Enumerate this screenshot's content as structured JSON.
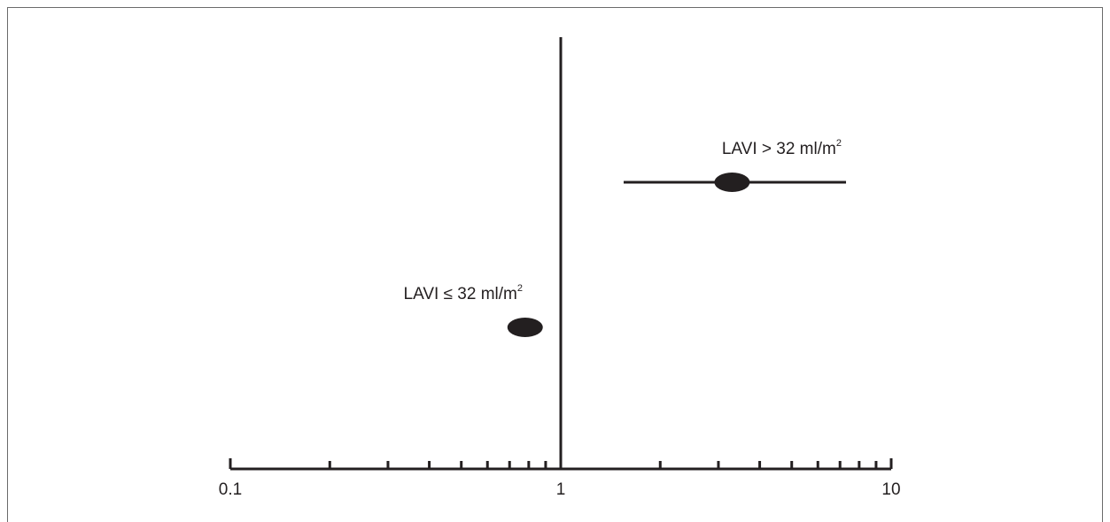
{
  "chart_data": {
    "type": "scatter",
    "subtype": "forest-plot",
    "xscale": "log",
    "xlim": [
      0.1,
      10
    ],
    "reference_line": 1,
    "grid": false,
    "xticks_major": [
      {
        "value": 0.1,
        "label": "0.1"
      },
      {
        "value": 1,
        "label": "1"
      },
      {
        "value": 10,
        "label": "10"
      }
    ],
    "xticks_minor": [
      0.2,
      0.3,
      0.4,
      0.5,
      0.6,
      0.7,
      0.8,
      0.9,
      2,
      3,
      4,
      5,
      6,
      7,
      8,
      9
    ],
    "series": [
      {
        "label_main": "LAVI > 32 ml/m",
        "label_sup": "2",
        "estimate": 3.3,
        "ci_low": 1.55,
        "ci_high": 7.3
      },
      {
        "label_main": "LAVI ≤ 32 ml/m",
        "label_sup": "2",
        "estimate": 0.78,
        "ci_low": 0.7,
        "ci_high": 0.88
      }
    ]
  }
}
